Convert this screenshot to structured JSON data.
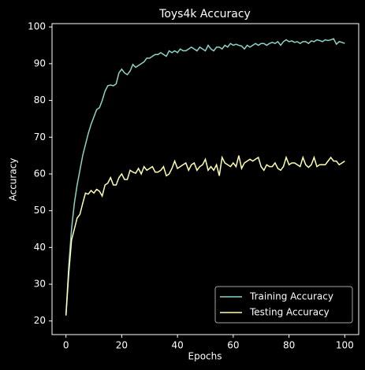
{
  "chart_data": {
    "type": "line",
    "title": "Toys4k Accuracy",
    "x_label": "Epochs",
    "y_label": "Accuracy",
    "x": [
      0,
      1,
      2,
      3,
      4,
      5,
      6,
      7,
      8,
      9,
      10,
      11,
      12,
      13,
      14,
      15,
      16,
      17,
      18,
      19,
      20,
      21,
      22,
      23,
      24,
      25,
      26,
      27,
      28,
      29,
      30,
      31,
      32,
      33,
      34,
      35,
      36,
      37,
      38,
      39,
      40,
      41,
      42,
      43,
      44,
      45,
      46,
      47,
      48,
      49,
      50,
      51,
      52,
      53,
      54,
      55,
      56,
      57,
      58,
      59,
      60,
      61,
      62,
      63,
      64,
      65,
      66,
      67,
      68,
      69,
      70,
      71,
      72,
      73,
      74,
      75,
      76,
      77,
      78,
      79,
      80,
      81,
      82,
      83,
      84,
      85,
      86,
      87,
      88,
      89,
      90,
      91,
      92,
      93,
      94,
      95,
      96,
      97,
      98,
      99,
      100
    ],
    "series": [
      {
        "name": "Training Accuracy",
        "color": "#8dd3c7",
        "values": [
          21.5,
          35,
          45,
          52,
          57,
          61,
          65,
          68,
          71,
          73.5,
          75.5,
          77.5,
          78,
          80,
          82.5,
          84,
          84.2,
          84,
          84.5,
          87.5,
          88.5,
          87.5,
          87,
          88,
          89.8,
          89,
          89.5,
          90,
          90.5,
          91.5,
          91.5,
          92,
          92.5,
          92.5,
          93,
          92.5,
          92,
          93.5,
          93,
          93.5,
          93,
          94,
          93.5,
          93.5,
          94,
          94.5,
          94,
          93.5,
          94.5,
          94,
          93.5,
          95,
          94,
          93.5,
          94.5,
          94.5,
          94,
          95,
          94.5,
          95.5,
          95,
          95.3,
          95,
          94.8,
          94,
          95,
          94.5,
          95,
          95.5,
          95,
          95.5,
          95.5,
          95,
          95.5,
          95.8,
          95.5,
          96,
          95,
          96,
          96.5,
          96,
          96.2,
          95.8,
          96,
          95.5,
          96,
          96,
          95.5,
          96.2,
          96,
          96.5,
          96.3,
          96,
          96.5,
          96.3,
          96.5,
          96.8,
          95.3,
          96,
          95.8,
          95.5
        ]
      },
      {
        "name": "Testing Accuracy",
        "color": "#ffffb3",
        "values": [
          21.5,
          33,
          42,
          45,
          48,
          49,
          52,
          54.8,
          54.5,
          55.5,
          54.8,
          55.8,
          55.3,
          54,
          57,
          57.5,
          59,
          57,
          57,
          59,
          60,
          58.5,
          58.5,
          61,
          60.5,
          60.2,
          61.5,
          60,
          62,
          61,
          61.5,
          62,
          60.5,
          60.5,
          61,
          62,
          59.5,
          60,
          61.5,
          63.5,
          61.5,
          62,
          62.5,
          63,
          61,
          62.5,
          63,
          61,
          62,
          62.5,
          64,
          61,
          62,
          61,
          62.5,
          59.5,
          64.5,
          63,
          62.5,
          62,
          63,
          62,
          65,
          61.5,
          63,
          63.5,
          64,
          63.5,
          64,
          64.5,
          62,
          61,
          62.5,
          62,
          62,
          63,
          61.5,
          61,
          62,
          64.5,
          62.5,
          63,
          63,
          62.5,
          62,
          64.5,
          62.5,
          61.8,
          62.5,
          64.5,
          62,
          62.5,
          62.5,
          62.5,
          63.5,
          64.5,
          63.5,
          63.5,
          62.5,
          63,
          63.5
        ]
      }
    ],
    "xlim": [
      -5,
      105
    ],
    "ylim": [
      16.3,
      100.9
    ],
    "xticks": [
      0,
      20,
      40,
      60,
      80,
      100
    ],
    "yticks": [
      20,
      30,
      40,
      50,
      60,
      70,
      80,
      90,
      100
    ],
    "legend": "lower right"
  }
}
